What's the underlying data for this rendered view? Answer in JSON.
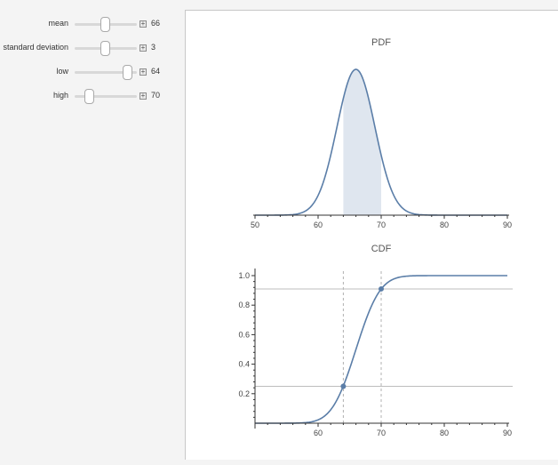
{
  "controls": [
    {
      "label": "mean",
      "value": "66",
      "fraction": 0.5
    },
    {
      "label": "standard deviation",
      "value": "3",
      "fraction": 0.5
    },
    {
      "label": "low",
      "value": "64",
      "fraction": 0.86
    },
    {
      "label": "high",
      "value": "70",
      "fraction": 0.24
    }
  ],
  "plus_glyph": "+",
  "colors": {
    "curve": "#5b7ea8",
    "fill": "#dfe6ef",
    "axis": "#333333",
    "grid": "#bdbdbd",
    "dash": "#b0b0b0"
  },
  "chart_data": [
    {
      "type": "area",
      "title": "PDF",
      "distribution": "normal",
      "mean": 66,
      "sd": 3,
      "shaded_interval": [
        64,
        70
      ],
      "xlim": [
        50,
        90
      ],
      "xticks": [
        50,
        60,
        70,
        80,
        90
      ],
      "xtick_labels": [
        "50",
        "60",
        "70",
        "80",
        "90"
      ]
    },
    {
      "type": "line",
      "title": "CDF",
      "distribution": "normal",
      "mean": 66,
      "sd": 3,
      "xlim": [
        50,
        90
      ],
      "ylim": [
        0,
        1.0
      ],
      "xticks": [
        60,
        70,
        80,
        90
      ],
      "xtick_labels": [
        "60",
        "70",
        "80",
        "90"
      ],
      "yticks": [
        0.2,
        0.4,
        0.6,
        0.8,
        1.0
      ],
      "ytick_labels": [
        "0.2",
        "0.4",
        "0.6",
        "0.8",
        "1.0"
      ],
      "marked_points": [
        {
          "x": 64,
          "y": 0.25
        },
        {
          "x": 70,
          "y": 0.91
        }
      ]
    }
  ]
}
